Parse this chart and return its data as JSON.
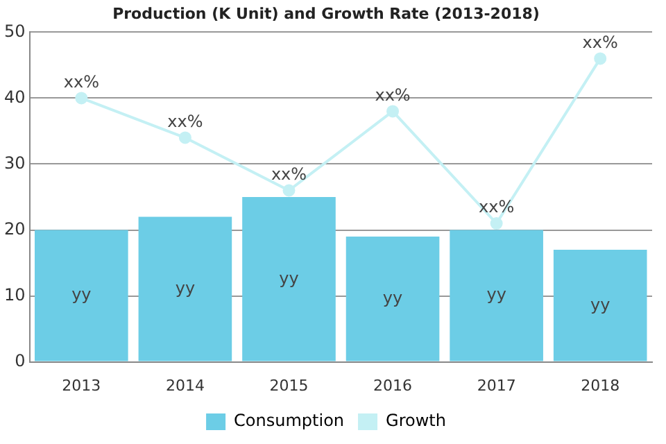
{
  "chart_data": {
    "type": "bar",
    "title": "Production (K Unit) and Growth Rate (2013-2018)",
    "categories": [
      "2013",
      "2014",
      "2015",
      "2016",
      "2017",
      "2018"
    ],
    "series": [
      {
        "name": "Consumption",
        "color": "#6ccde6",
        "values": [
          20,
          22,
          25,
          19,
          20,
          17
        ],
        "value_labels": [
          "yy",
          "yy",
          "yy",
          "yy",
          "yy",
          "yy"
        ]
      },
      {
        "name": "Growth",
        "type": "line",
        "color": "#c4f0f4",
        "values": [
          40,
          34,
          26,
          38,
          21,
          46
        ],
        "value_labels": [
          "xx%",
          "xx%",
          "xx%",
          "xx%",
          "xx%",
          "xx%"
        ]
      }
    ],
    "ylim": [
      0,
      50
    ],
    "yticks": [
      0,
      10,
      20,
      30,
      40,
      50
    ],
    "grid": "y",
    "legend": "bottom",
    "marker": "circle"
  }
}
